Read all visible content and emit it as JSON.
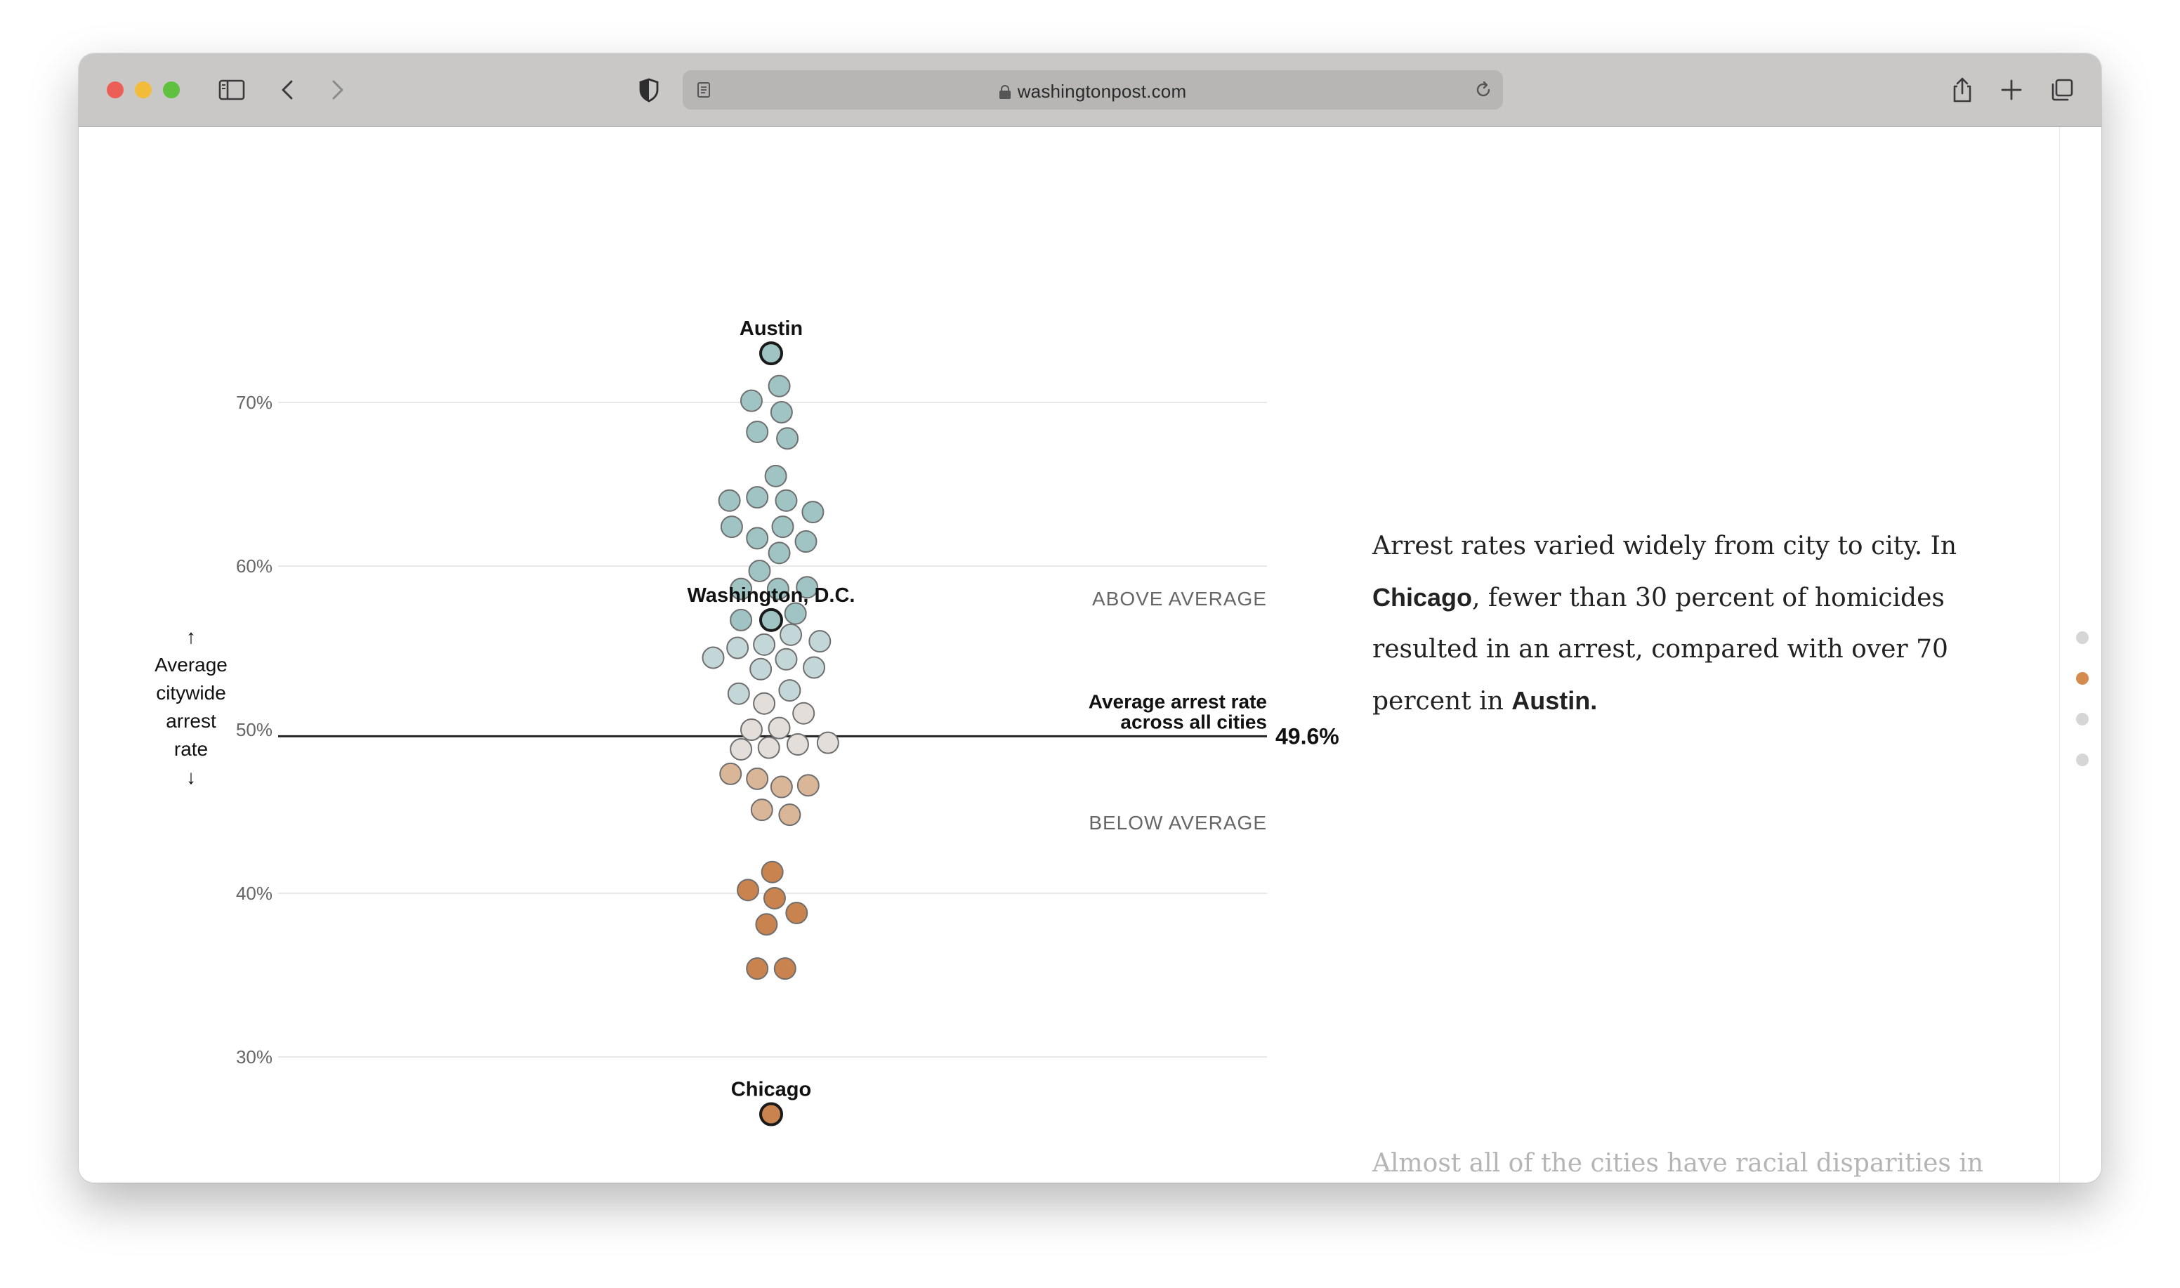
{
  "browser": {
    "url": "washingtonpost.com"
  },
  "colors": {
    "above_strong": "#9fc4c3",
    "above_light": "#c4d7d8",
    "near_avg": "#e4dedb",
    "below_light": "#d9b697",
    "below_strong": "#c9834e",
    "gridline": "#e8e8e8",
    "average_line": "#222222",
    "highlight_stroke": "#1a1a1a"
  },
  "chart_data": {
    "type": "scatter",
    "ylabel": "Average citywide arrest rate",
    "ylabel_lines": [
      "↑",
      "Average",
      "citywide",
      "arrest",
      "rate",
      "↓"
    ],
    "ylim": [
      24,
      77
    ],
    "y_ticks": [
      30,
      40,
      50,
      60,
      70
    ],
    "y_tick_labels": [
      "30%",
      "40%",
      "50%",
      "60%",
      "70%"
    ],
    "grid": true,
    "average": {
      "value": 49.6,
      "value_label": "49.6%",
      "label_line1": "Average arrest rate",
      "label_line2": "across all cities"
    },
    "annotations": {
      "above": "ABOVE AVERAGE",
      "below": "BELOW AVERAGE"
    },
    "highlighted": [
      {
        "name": "Austin",
        "value": 73.0
      },
      {
        "name": "Washington, D.C.",
        "value": 56.7
      },
      {
        "name": "Chicago",
        "value": 26.5
      }
    ],
    "cities": [
      {
        "jitter": 0.35,
        "value": 71.0
      },
      {
        "jitter": -0.85,
        "value": 70.1
      },
      {
        "jitter": 0.45,
        "value": 69.4
      },
      {
        "jitter": -0.6,
        "value": 68.2
      },
      {
        "jitter": 0.7,
        "value": 67.8
      },
      {
        "jitter": 0.2,
        "value": 65.5
      },
      {
        "jitter": -1.8,
        "value": 64.0
      },
      {
        "jitter": -0.6,
        "value": 64.2
      },
      {
        "jitter": 0.65,
        "value": 64.0
      },
      {
        "jitter": 1.8,
        "value": 63.3
      },
      {
        "jitter": -1.7,
        "value": 62.4
      },
      {
        "jitter": 0.5,
        "value": 62.4
      },
      {
        "jitter": -0.6,
        "value": 61.7
      },
      {
        "jitter": 1.5,
        "value": 61.5
      },
      {
        "jitter": 0.35,
        "value": 60.8
      },
      {
        "jitter": -0.5,
        "value": 59.7
      },
      {
        "jitter": -1.3,
        "value": 58.6
      },
      {
        "jitter": 0.3,
        "value": 58.6
      },
      {
        "jitter": 1.55,
        "value": 58.7
      },
      {
        "jitter": -1.3,
        "value": 56.7
      },
      {
        "jitter": 1.05,
        "value": 57.1
      },
      {
        "jitter": 0.85,
        "value": 55.8
      },
      {
        "jitter": 2.1,
        "value": 55.4
      },
      {
        "jitter": -2.5,
        "value": 54.4
      },
      {
        "jitter": -1.45,
        "value": 55.0
      },
      {
        "jitter": -0.3,
        "value": 55.2
      },
      {
        "jitter": 0.65,
        "value": 54.3
      },
      {
        "jitter": 1.85,
        "value": 53.8
      },
      {
        "jitter": -0.45,
        "value": 53.7
      },
      {
        "jitter": -1.4,
        "value": 52.2
      },
      {
        "jitter": 0.8,
        "value": 52.4
      },
      {
        "jitter": -0.3,
        "value": 51.6
      },
      {
        "jitter": 1.4,
        "value": 51.0
      },
      {
        "jitter": -0.85,
        "value": 50.0
      },
      {
        "jitter": 0.35,
        "value": 50.1
      },
      {
        "jitter": -1.3,
        "value": 48.8
      },
      {
        "jitter": -0.1,
        "value": 48.9
      },
      {
        "jitter": 1.15,
        "value": 49.1
      },
      {
        "jitter": 2.45,
        "value": 49.2
      },
      {
        "jitter": -1.75,
        "value": 47.3
      },
      {
        "jitter": -0.6,
        "value": 47.0
      },
      {
        "jitter": 0.45,
        "value": 46.5
      },
      {
        "jitter": 1.6,
        "value": 46.6
      },
      {
        "jitter": -0.4,
        "value": 45.1
      },
      {
        "jitter": 0.8,
        "value": 44.8
      },
      {
        "jitter": 0.05,
        "value": 41.3
      },
      {
        "jitter": -1.0,
        "value": 40.2
      },
      {
        "jitter": 0.15,
        "value": 39.7
      },
      {
        "jitter": 1.1,
        "value": 38.8
      },
      {
        "jitter": -0.2,
        "value": 38.1
      },
      {
        "jitter": -0.6,
        "value": 35.4
      },
      {
        "jitter": 0.6,
        "value": 35.4
      }
    ]
  },
  "article": {
    "paragraph_parts": [
      {
        "text": "Arrest rates varied widely from city to city. In ",
        "bold": false
      },
      {
        "text": "Chicago",
        "bold": true
      },
      {
        "text": ", fewer than 30 percent of homicides resulted in an arrest, compared with over 70 percent in ",
        "bold": false
      },
      {
        "text": "Austin.",
        "bold": true
      }
    ],
    "next_paragraph_start": "Almost all of the cities have racial disparities in"
  },
  "section_nav": {
    "dots": 4,
    "active_index": 1
  }
}
